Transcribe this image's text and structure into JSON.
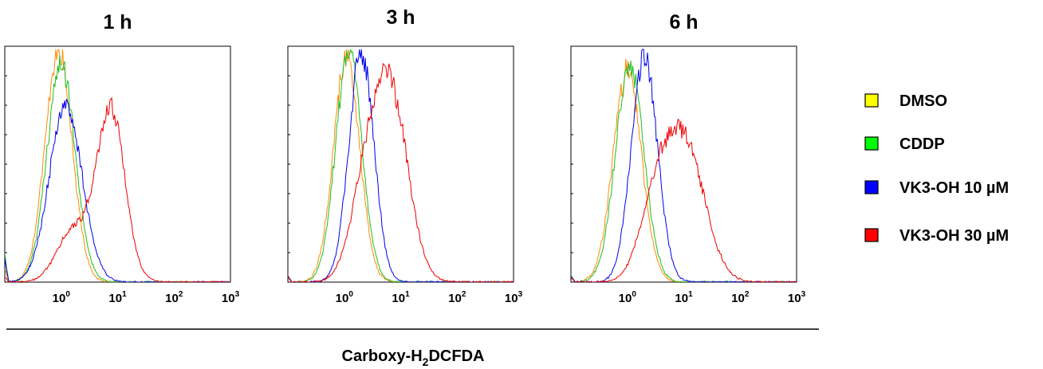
{
  "chart_data": [
    {
      "type": "line",
      "title": "1 h",
      "xscale": "log",
      "xlim": [
        0.1,
        1000
      ],
      "x_ticks": [
        {
          "base": "10",
          "exp": "0"
        },
        {
          "base": "10",
          "exp": "1"
        },
        {
          "base": "10",
          "exp": "2"
        },
        {
          "base": "10",
          "exp": "3"
        }
      ],
      "series": [
        {
          "name": "DMSO",
          "color": "#ff8c00",
          "peak_x": 0.9,
          "peak_y": 1.0,
          "width": 0.24,
          "start_y": 0.06
        },
        {
          "name": "CDDP",
          "color": "#22bb22",
          "peak_x": 1.0,
          "peak_y": 0.93,
          "width": 0.25,
          "start_y": 0.12
        },
        {
          "name": "VK3-OH 10 µM",
          "color": "#0000ee",
          "peak_x": 1.2,
          "peak_y": 0.76,
          "width": 0.29,
          "start_y": 0.1
        },
        {
          "name": "VK3-OH 30 µM",
          "color": "#ee0000",
          "peak_x": 7.5,
          "peak_y": 0.75,
          "width": 0.25,
          "shoulder_x": 1.6,
          "shoulder_y": 0.22,
          "start_y": 0.02
        }
      ]
    },
    {
      "type": "line",
      "title": "3 h",
      "xscale": "log",
      "xlim": [
        0.1,
        1000
      ],
      "x_ticks": [
        {
          "base": "10",
          "exp": "0"
        },
        {
          "base": "10",
          "exp": "1"
        },
        {
          "base": "10",
          "exp": "2"
        },
        {
          "base": "10",
          "exp": "3"
        }
      ],
      "series": [
        {
          "name": "DMSO",
          "color": "#ff8c00",
          "peak_x": 1.1,
          "peak_y": 0.97,
          "width": 0.23,
          "start_y": 0.03
        },
        {
          "name": "CDDP",
          "color": "#22bb22",
          "peak_x": 1.2,
          "peak_y": 0.99,
          "width": 0.23,
          "start_y": 0.03
        },
        {
          "name": "VK3-OH 10 µM",
          "color": "#0000ee",
          "peak_x": 2.0,
          "peak_y": 0.99,
          "width": 0.22,
          "start_y": 0.03
        },
        {
          "name": "VK3-OH 30 µM",
          "color": "#ee0000",
          "peak_x": 7.0,
          "peak_y": 0.75,
          "width": 0.3,
          "shoulder_x": 2.5,
          "shoulder_y": 0.4,
          "start_y": 0.02
        }
      ]
    },
    {
      "type": "line",
      "title": "6 h",
      "xscale": "log",
      "xlim": [
        0.1,
        1000
      ],
      "x_ticks": [
        {
          "base": "10",
          "exp": "0"
        },
        {
          "base": "10",
          "exp": "1"
        },
        {
          "base": "10",
          "exp": "2"
        },
        {
          "base": "10",
          "exp": "3"
        }
      ],
      "series": [
        {
          "name": "DMSO",
          "color": "#ff8c00",
          "peak_x": 1.0,
          "peak_y": 0.91,
          "width": 0.25,
          "start_y": 0.03
        },
        {
          "name": "CDDP",
          "color": "#22bb22",
          "peak_x": 1.1,
          "peak_y": 0.93,
          "width": 0.25,
          "start_y": 0.03
        },
        {
          "name": "VK3-OH 10 µM",
          "color": "#0000ee",
          "peak_x": 2.0,
          "peak_y": 0.98,
          "width": 0.23,
          "start_y": 0.03
        },
        {
          "name": "VK3-OH 30 µM",
          "color": "#ee0000",
          "peak_x": 10.0,
          "peak_y": 0.6,
          "width": 0.36,
          "shoulder_x": 3.0,
          "shoulder_y": 0.27,
          "start_y": 0.02
        }
      ]
    }
  ],
  "legend": {
    "placement": "right",
    "items": [
      {
        "label": "DMSO",
        "color": "#ffff00"
      },
      {
        "label": "CDDP",
        "color": "#00ff00"
      },
      {
        "label": "VK3-OH 10 µM",
        "color": "#0000ff"
      },
      {
        "label": "VK3-OH 30 µM",
        "color": "#ff0000"
      }
    ]
  },
  "xlabel": {
    "prefix": "Carboxy-H",
    "subscript": "2",
    "suffix": "DCFDA"
  }
}
